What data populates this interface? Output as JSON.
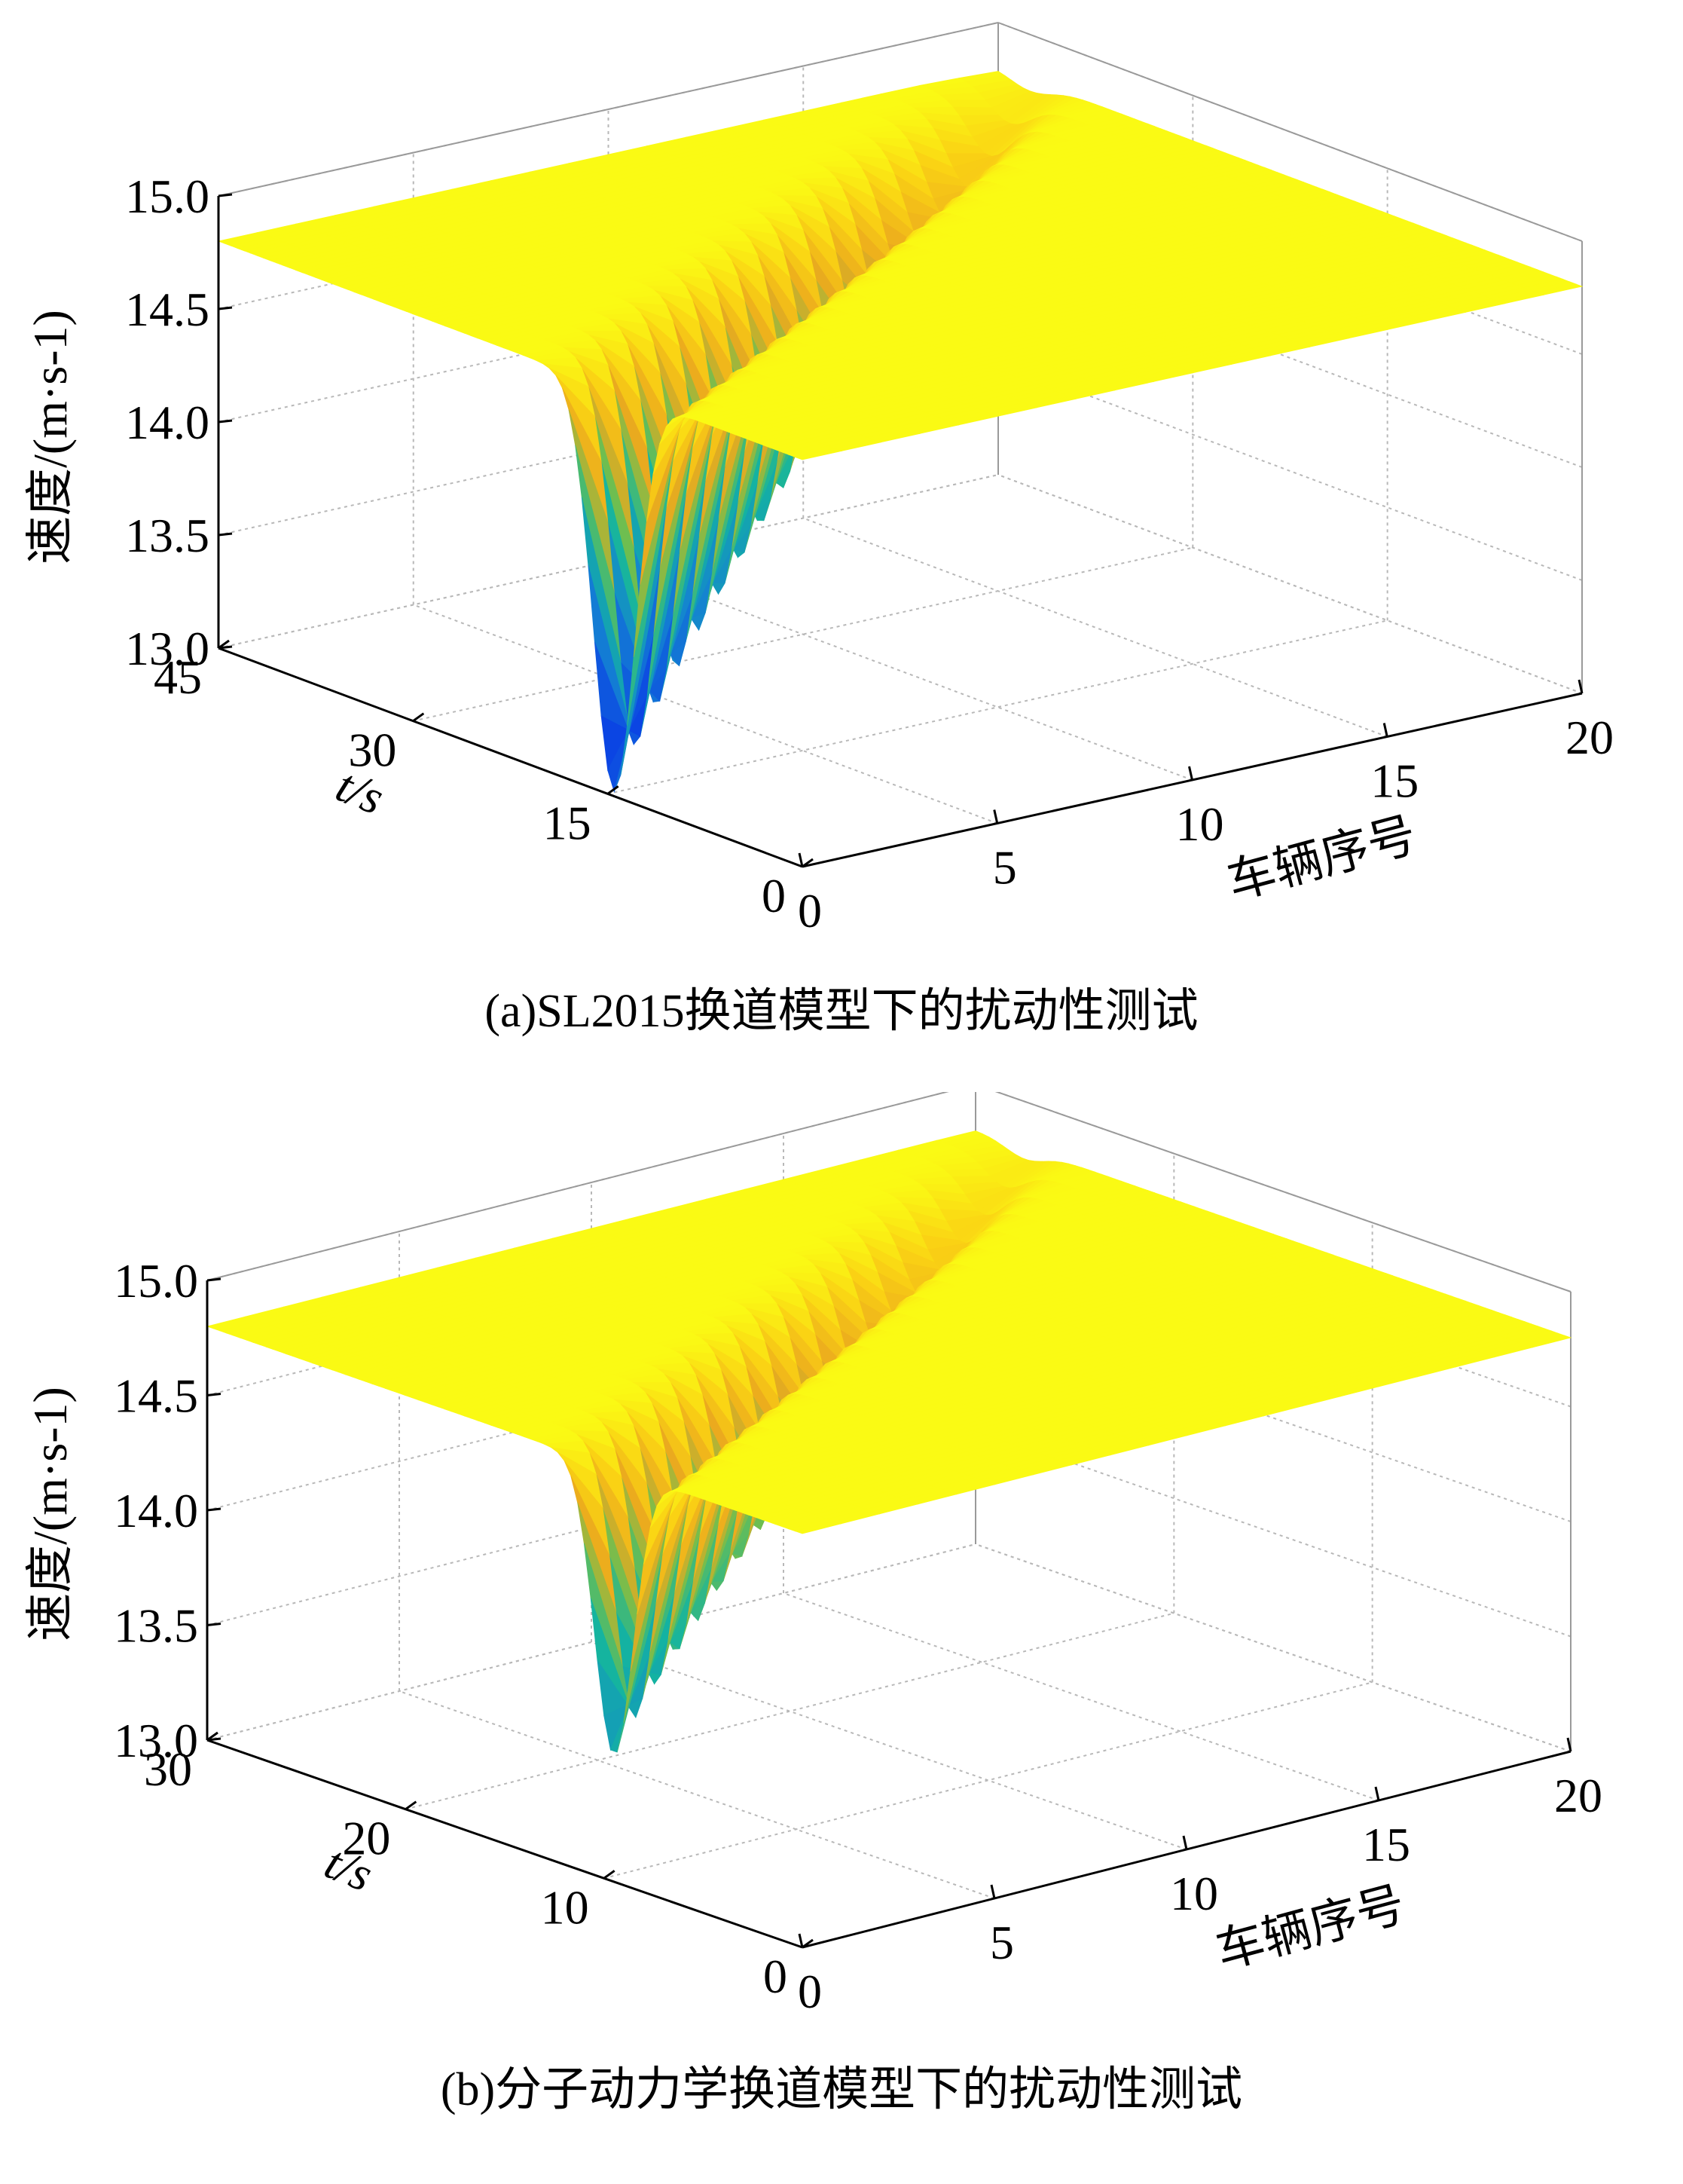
{
  "chart_data": [
    {
      "type": "surface",
      "caption": "(a)SL2015换道模型下的扰动性测试",
      "zlabel": "速度/(m·s-1)",
      "ylabel": "t/s",
      "xlabel": "车辆序号",
      "zlim": [
        13.0,
        15.0
      ],
      "z_ticks": [
        "15.0",
        "14.5",
        "14.0",
        "13.5",
        "13.0"
      ],
      "y_ticks": [
        "45",
        "30",
        "15",
        "0"
      ],
      "x_ticks": [
        "0",
        "5",
        "10",
        "15",
        "20"
      ],
      "ylim": [
        0,
        45
      ],
      "xlim": [
        0,
        20
      ],
      "grid": true,
      "colormap": "parula",
      "surface": {
        "baseline_speed": 14.8,
        "min_speed_first_vehicle": 13.02,
        "min_speed_last_vehicle": 14.75,
        "dip_start_time_first_vehicle": 12,
        "dip_end_time_first_vehicle": 17,
        "dip_delay_per_vehicle": 1.4
      }
    },
    {
      "type": "surface",
      "caption": "(b)分子动力学换道模型下的扰动性测试",
      "zlabel": "速度/(m·s-1)",
      "ylabel": "t/s",
      "xlabel": "车辆序号",
      "zlim": [
        13.0,
        15.0
      ],
      "z_ticks": [
        "15.0",
        "14.5",
        "14.0",
        "13.5",
        "13.0"
      ],
      "y_ticks": [
        "30",
        "20",
        "10",
        "0"
      ],
      "x_ticks": [
        "0",
        "5",
        "10",
        "15",
        "20"
      ],
      "ylim": [
        0,
        30
      ],
      "xlim": [
        0,
        20
      ],
      "grid": true,
      "colormap": "parula",
      "surface": {
        "baseline_speed": 14.8,
        "min_speed_first_vehicle": 13.55,
        "min_speed_last_vehicle": 14.75,
        "dip_start_time_first_vehicle": 8,
        "dip_end_time_first_vehicle": 11,
        "dip_delay_per_vehicle": 0.9
      }
    }
  ]
}
